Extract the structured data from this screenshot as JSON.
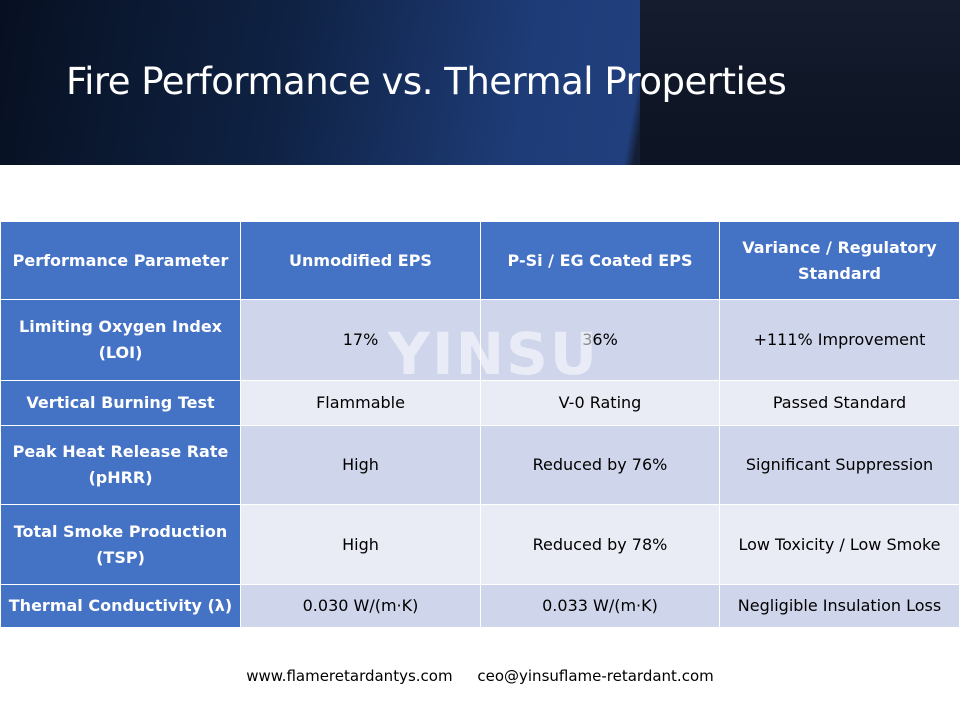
{
  "slide": {
    "title": "Fire Performance vs. Thermal Properties",
    "watermark": "YINSU"
  },
  "table": {
    "headers": [
      "Performance Parameter",
      "Unmodified EPS",
      "P-Si / EG Coated EPS",
      "Variance / Regulatory Standard"
    ],
    "rows": [
      [
        "Limiting Oxygen Index (LOI)",
        "17%",
        "36%",
        "+111% Improvement"
      ],
      [
        "Vertical Burning Test",
        "Flammable",
        "V-0 Rating",
        "Passed Standard"
      ],
      [
        "Peak Heat Release Rate (pHRR)",
        "High",
        "Reduced by 76%",
        "Significant Suppression"
      ],
      [
        "Total Smoke Production (TSP)",
        "High",
        "Reduced by 78%",
        "Low Toxicity / Low Smoke"
      ],
      [
        "Thermal Conductivity (λ)",
        "0.030 W/(m·K)",
        "0.033 W/(m·K)",
        "Negligible Insulation Loss"
      ]
    ]
  },
  "footer": {
    "website": "www.flameretardantys.com",
    "email": "ceo@yinsuflame-retardant.com"
  },
  "colors": {
    "header_blue": "#4472c4",
    "row_dark": "#cfd5ea",
    "row_light": "#e9ebf5"
  }
}
